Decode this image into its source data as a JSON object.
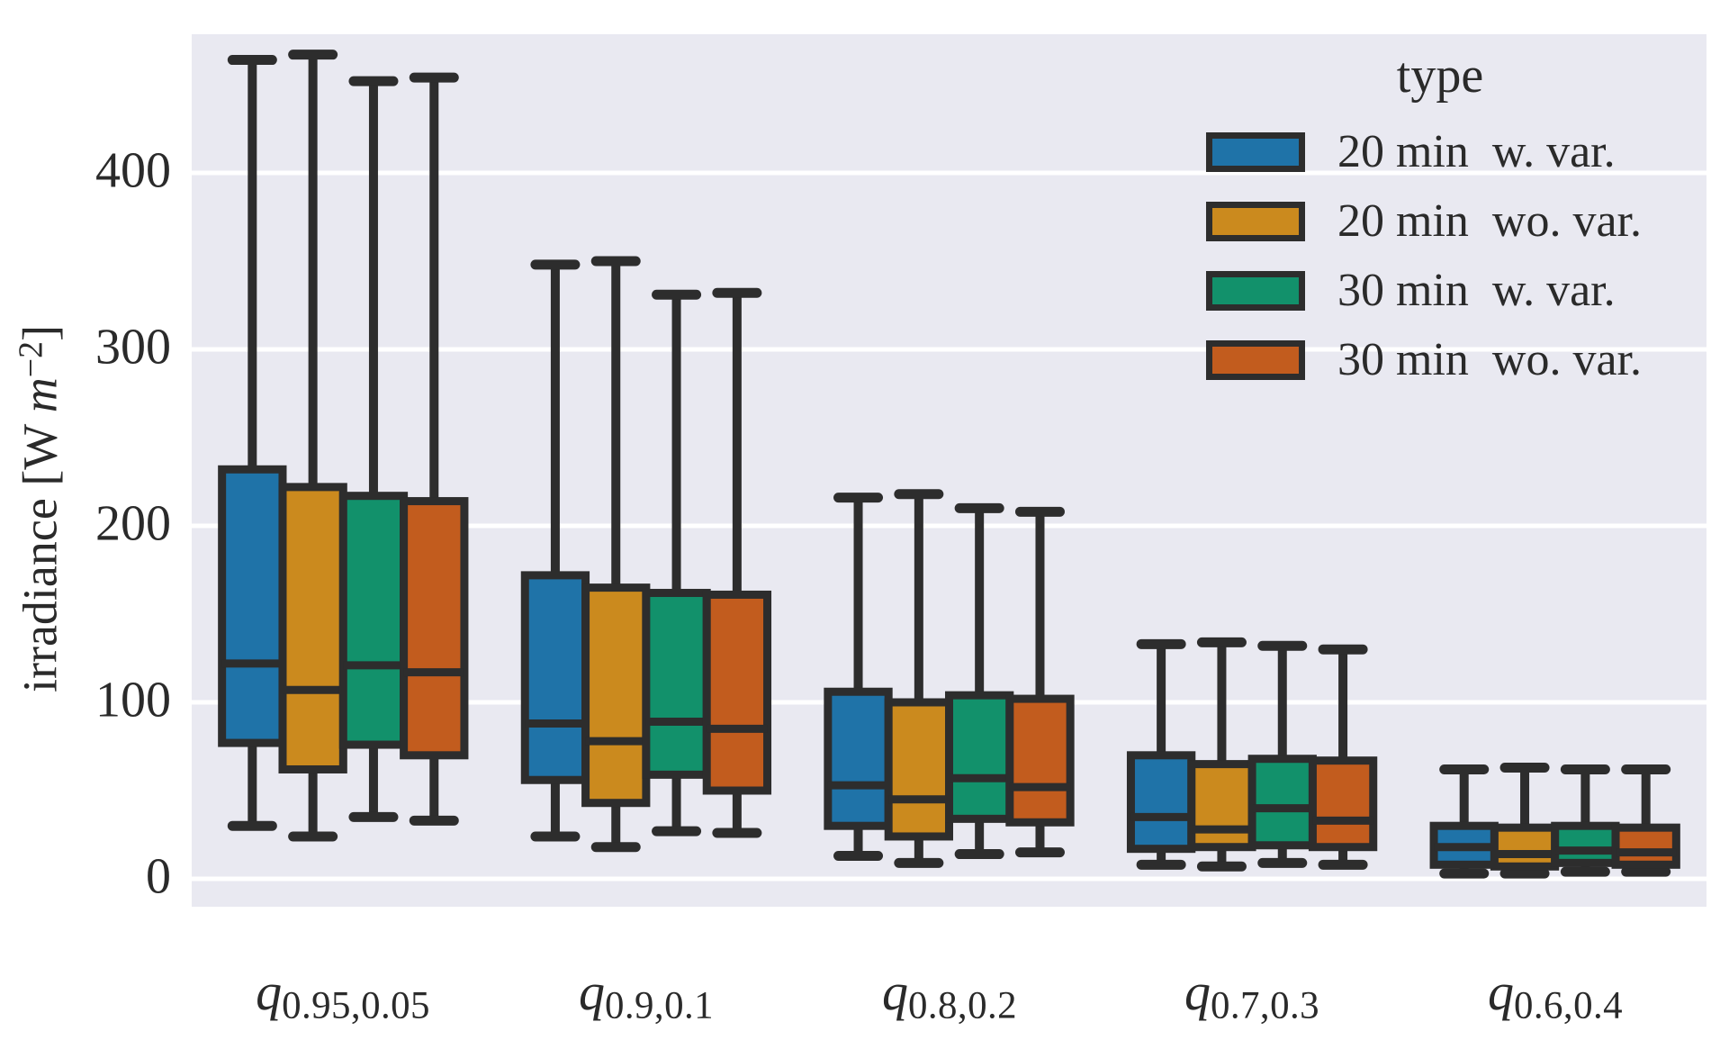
{
  "ylabel_parts": {
    "prefix": "irradiance [W ",
    "italic": "m",
    "sup": "−2",
    "suffix": "]"
  },
  "ytick_labels": [
    "400",
    "300",
    "200",
    "100",
    "0"
  ],
  "chart_data": {
    "type": "boxplot",
    "title": "",
    "ylabel": "irradiance [W m^-2]",
    "xlabel": "",
    "grid": "horizontal-white-gridlines",
    "legend_title": "type",
    "legend_position": "upper right",
    "ylim": [
      -16,
      479
    ],
    "yticks": [
      0,
      100,
      200,
      300,
      400
    ],
    "categories": [
      {
        "base": "q",
        "sub": "0.95,0.05"
      },
      {
        "base": "q",
        "sub": "0.9,0.1"
      },
      {
        "base": "q",
        "sub": "0.8,0.2"
      },
      {
        "base": "q",
        "sub": "0.7,0.3"
      },
      {
        "base": "q",
        "sub": "0.6,0.4"
      }
    ],
    "box_stats_order": [
      "min",
      "q1",
      "median",
      "q3",
      "max"
    ],
    "series": [
      {
        "name": "20 min  w. var.",
        "color": "#1f73a8",
        "boxes": [
          [
            30,
            77,
            122,
            232,
            464
          ],
          [
            24,
            56,
            88,
            172,
            348
          ],
          [
            13,
            30,
            53,
            106,
            216
          ],
          [
            8,
            17,
            35,
            70,
            133
          ],
          [
            3,
            8,
            18,
            30,
            62
          ]
        ]
      },
      {
        "name": "20 min  wo. var.",
        "color": "#cb8a1e",
        "boxes": [
          [
            24,
            62,
            107,
            222,
            467
          ],
          [
            18,
            43,
            78,
            165,
            350
          ],
          [
            9,
            24,
            45,
            100,
            218
          ],
          [
            7,
            18,
            28,
            65,
            134
          ],
          [
            3,
            7,
            14,
            29,
            63
          ]
        ]
      },
      {
        "name": "30 min  w. var.",
        "color": "#12916b",
        "boxes": [
          [
            35,
            76,
            121,
            217,
            452
          ],
          [
            27,
            59,
            89,
            162,
            331
          ],
          [
            14,
            34,
            57,
            104,
            210
          ],
          [
            9,
            19,
            40,
            68,
            132
          ],
          [
            4,
            9,
            16,
            30,
            62
          ]
        ]
      },
      {
        "name": "30 min  wo. var.",
        "color": "#c25c1e",
        "boxes": [
          [
            33,
            70,
            117,
            214,
            454
          ],
          [
            26,
            50,
            85,
            161,
            332
          ],
          [
            15,
            32,
            52,
            102,
            208
          ],
          [
            8,
            18,
            33,
            67,
            130
          ],
          [
            4,
            8,
            15,
            29,
            62
          ]
        ]
      }
    ],
    "colors": {
      "plot_background": "#e9e9f1",
      "gridline": "#ffffff",
      "box_edge": "#2d2d2d",
      "text": "#2a2a2a",
      "page_background": "#ffffff"
    }
  }
}
